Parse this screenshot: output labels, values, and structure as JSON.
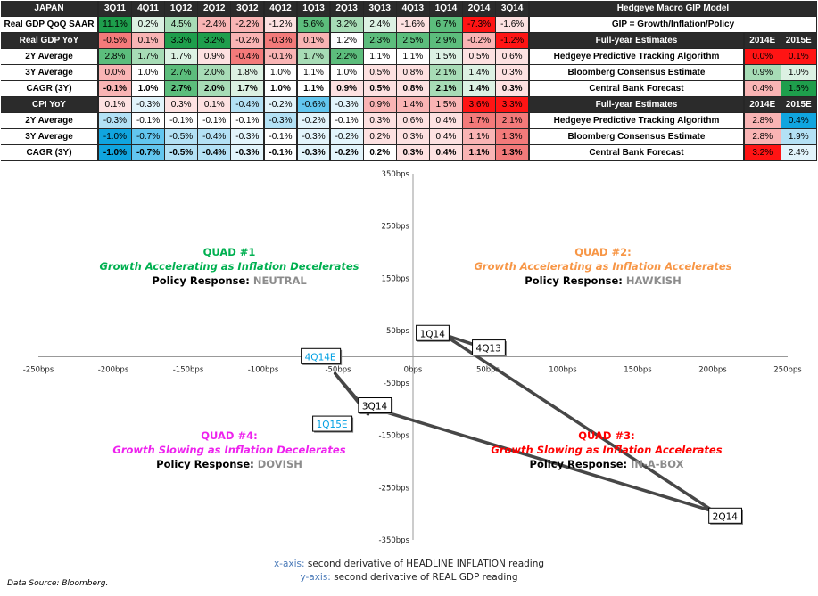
{
  "palette": {
    "G3": "#1e9e4c",
    "G2": "#5cbd7c",
    "G1": "#a7dcb6",
    "G0": "#dcf1e3",
    "W": "#ffffff",
    "R0": "#fde1e1",
    "R1": "#f9b4b4",
    "R2": "#f37a7a",
    "R3": "#ff1414",
    "B0": "#e2f4fb",
    "B1": "#b3e1f5",
    "B2": "#62c6ef",
    "B3": "#10a5df"
  },
  "table": {
    "corner": "JAPAN",
    "quarters": [
      "3Q11",
      "4Q11",
      "1Q12",
      "2Q12",
      "3Q12",
      "4Q12",
      "1Q13",
      "2Q13",
      "3Q13",
      "4Q13",
      "1Q14",
      "2Q14",
      "3Q14"
    ],
    "rows": [
      {
        "label": "Real GDP QoQ SAAR",
        "style": "light",
        "bold": false,
        "cells": [
          [
            "11.1%",
            "G3"
          ],
          [
            "0.2%",
            "G0"
          ],
          [
            "4.5%",
            "G1"
          ],
          [
            "-2.4%",
            "R1"
          ],
          [
            "-2.2%",
            "R1"
          ],
          [
            "-1.2%",
            "R0"
          ],
          [
            "5.6%",
            "G2"
          ],
          [
            "3.2%",
            "G1"
          ],
          [
            "2.4%",
            "G0"
          ],
          [
            "-1.6%",
            "R0"
          ],
          [
            "6.7%",
            "G2"
          ],
          [
            "-7.3%",
            "R3"
          ],
          [
            "-1.6%",
            "R0"
          ]
        ]
      },
      {
        "label": "Real GDP YoY",
        "style": "dark",
        "bold": false,
        "cells": [
          [
            "-0.5%",
            "R2"
          ],
          [
            "0.1%",
            "R1"
          ],
          [
            "3.3%",
            "G3"
          ],
          [
            "3.2%",
            "G3"
          ],
          [
            "-0.2%",
            "R1"
          ],
          [
            "-0.3%",
            "R2"
          ],
          [
            "0.1%",
            "R1"
          ],
          [
            "1.2%",
            "W"
          ],
          [
            "2.3%",
            "G2"
          ],
          [
            "2.5%",
            "G2"
          ],
          [
            "2.9%",
            "G2"
          ],
          [
            "-0.2%",
            "R1"
          ],
          [
            "-1.2%",
            "R3"
          ]
        ]
      },
      {
        "label": "2Y Average",
        "style": "light",
        "bold": false,
        "cells": [
          [
            "2.8%",
            "G2"
          ],
          [
            "1.7%",
            "G1"
          ],
          [
            "1.7%",
            "G0"
          ],
          [
            "0.9%",
            "R0"
          ],
          [
            "-0.4%",
            "R2"
          ],
          [
            "-0.1%",
            "R1"
          ],
          [
            "1.7%",
            "G1"
          ],
          [
            "2.2%",
            "G2"
          ],
          [
            "1.1%",
            "W"
          ],
          [
            "1.1%",
            "W"
          ],
          [
            "1.5%",
            "G0"
          ],
          [
            "0.5%",
            "R0"
          ],
          [
            "0.6%",
            "R0"
          ]
        ]
      },
      {
        "label": "3Y Average",
        "style": "light",
        "bold": false,
        "cells": [
          [
            "0.0%",
            "R1"
          ],
          [
            "1.0%",
            "W"
          ],
          [
            "2.7%",
            "G2"
          ],
          [
            "2.0%",
            "G1"
          ],
          [
            "1.8%",
            "G0"
          ],
          [
            "1.0%",
            "W"
          ],
          [
            "1.1%",
            "W"
          ],
          [
            "1.0%",
            "W"
          ],
          [
            "0.5%",
            "R0"
          ],
          [
            "0.8%",
            "R0"
          ],
          [
            "2.1%",
            "G1"
          ],
          [
            "1.4%",
            "G0"
          ],
          [
            "0.3%",
            "R0"
          ]
        ]
      },
      {
        "label": "CAGR (3Y)",
        "style": "light",
        "bold": true,
        "cells": [
          [
            "-0.1%",
            "R1"
          ],
          [
            "1.0%",
            "W"
          ],
          [
            "2.7%",
            "G2"
          ],
          [
            "2.0%",
            "G1"
          ],
          [
            "1.7%",
            "G0"
          ],
          [
            "1.0%",
            "W"
          ],
          [
            "1.1%",
            "W"
          ],
          [
            "0.9%",
            "R0"
          ],
          [
            "0.5%",
            "R0"
          ],
          [
            "0.8%",
            "R0"
          ],
          [
            "2.1%",
            "G1"
          ],
          [
            "1.4%",
            "G0"
          ],
          [
            "0.3%",
            "R0"
          ]
        ]
      },
      {
        "label": "CPI YoY",
        "style": "dark",
        "bold": false,
        "cells": [
          [
            "0.1%",
            "R0"
          ],
          [
            "-0.3%",
            "B0"
          ],
          [
            "0.3%",
            "R0"
          ],
          [
            "0.1%",
            "R0"
          ],
          [
            "-0.4%",
            "B1"
          ],
          [
            "-0.2%",
            "B0"
          ],
          [
            "-0.6%",
            "B2"
          ],
          [
            "-0.3%",
            "B0"
          ],
          [
            "0.9%",
            "R1"
          ],
          [
            "1.4%",
            "R1"
          ],
          [
            "1.5%",
            "R1"
          ],
          [
            "3.6%",
            "R3"
          ],
          [
            "3.3%",
            "R3"
          ]
        ]
      },
      {
        "label": "2Y Average",
        "style": "light",
        "bold": false,
        "cells": [
          [
            "-0.3%",
            "B1"
          ],
          [
            "-0.1%",
            "W"
          ],
          [
            "-0.1%",
            "W"
          ],
          [
            "-0.1%",
            "W"
          ],
          [
            "-0.1%",
            "W"
          ],
          [
            "-0.3%",
            "B1"
          ],
          [
            "-0.2%",
            "B0"
          ],
          [
            "-0.1%",
            "W"
          ],
          [
            "0.3%",
            "R0"
          ],
          [
            "0.6%",
            "R0"
          ],
          [
            "0.4%",
            "R0"
          ],
          [
            "1.7%",
            "R2"
          ],
          [
            "2.1%",
            "R2"
          ]
        ]
      },
      {
        "label": "3Y Average",
        "style": "light",
        "bold": false,
        "cells": [
          [
            "-1.0%",
            "B3"
          ],
          [
            "-0.7%",
            "B2"
          ],
          [
            "-0.5%",
            "B1"
          ],
          [
            "-0.4%",
            "B1"
          ],
          [
            "-0.3%",
            "B0"
          ],
          [
            "-0.1%",
            "W"
          ],
          [
            "-0.3%",
            "B0"
          ],
          [
            "-0.2%",
            "B0"
          ],
          [
            "0.2%",
            "R0"
          ],
          [
            "0.3%",
            "R0"
          ],
          [
            "0.4%",
            "R0"
          ],
          [
            "1.1%",
            "R1"
          ],
          [
            "1.3%",
            "R2"
          ]
        ]
      },
      {
        "label": "CAGR (3Y)",
        "style": "light",
        "bold": true,
        "cells": [
          [
            "-1.0%",
            "B3"
          ],
          [
            "-0.7%",
            "B2"
          ],
          [
            "-0.5%",
            "B1"
          ],
          [
            "-0.4%",
            "B1"
          ],
          [
            "-0.3%",
            "B0"
          ],
          [
            "-0.1%",
            "W"
          ],
          [
            "-0.3%",
            "B0"
          ],
          [
            "-0.2%",
            "B0"
          ],
          [
            "0.2%",
            "W"
          ],
          [
            "0.3%",
            "R0"
          ],
          [
            "0.4%",
            "R0"
          ],
          [
            "1.1%",
            "R1"
          ],
          [
            "1.3%",
            "R2"
          ]
        ]
      }
    ]
  },
  "gip": {
    "title": "Hedgeye Macro GIP Model",
    "subtitle": "GIP = Growth/Inflation/Policy",
    "sections": [
      {
        "header": "Full-year Estimates",
        "years": [
          "2014E",
          "2015E"
        ],
        "rows": [
          {
            "label": "Hedgeye Predictive Tracking Algorithm",
            "cells": [
              [
                "0.0%",
                "R3"
              ],
              [
                "0.1%",
                "R3"
              ]
            ]
          },
          {
            "label": "Bloomberg Consensus Estimate",
            "cells": [
              [
                "0.9%",
                "G1"
              ],
              [
                "1.0%",
                "G0"
              ]
            ]
          },
          {
            "label": "Central Bank Forecast",
            "cells": [
              [
                "0.4%",
                "R1"
              ],
              [
                "1.5%",
                "G3"
              ]
            ]
          }
        ]
      },
      {
        "header": "Full-year Estimates",
        "years": [
          "2014E",
          "2015E"
        ],
        "rows": [
          {
            "label": "Hedgeye Predictive Tracking Algorithm",
            "cells": [
              [
                "2.8%",
                "R1"
              ],
              [
                "0.4%",
                "B3"
              ]
            ]
          },
          {
            "label": "Bloomberg Consensus Estimate",
            "cells": [
              [
                "2.8%",
                "R1"
              ],
              [
                "1.9%",
                "B1"
              ]
            ]
          },
          {
            "label": "Central Bank Forecast",
            "cells": [
              [
                "3.2%",
                "R3"
              ],
              [
                "2.4%",
                "B0"
              ]
            ]
          }
        ]
      }
    ]
  },
  "chart_data": {
    "type": "scatter",
    "xlim": [
      -250,
      250
    ],
    "ylim": [
      -350,
      350
    ],
    "x_ticks": [
      "-250bps",
      "-200bps",
      "-150bps",
      "-100bps",
      "-50bps",
      "0bps",
      "50bps",
      "100bps",
      "150bps",
      "200bps",
      "250bps"
    ],
    "x_tick_values": [
      -250,
      -200,
      -150,
      -100,
      -50,
      0,
      50,
      100,
      150,
      200,
      250
    ],
    "y_ticks": [
      "350bps",
      "250bps",
      "150bps",
      "50bps",
      "-50bps",
      "-150bps",
      "-250bps",
      "-350bps"
    ],
    "y_tick_values": [
      350,
      250,
      150,
      50,
      -50,
      -150,
      -250,
      -350
    ],
    "line_color": "#333333",
    "points": [
      {
        "label": "4Q13",
        "x": 42,
        "y": 22,
        "color": "#000000"
      },
      {
        "label": "1Q14",
        "x": 20,
        "y": 43,
        "color": "#000000"
      },
      {
        "label": "2Q14",
        "x": 201,
        "y": -296,
        "color": "#000000"
      },
      {
        "label": "3Q14",
        "x": -34,
        "y": -92,
        "color": "#000000"
      },
      {
        "label": "4Q14E",
        "x": -52,
        "y": -32,
        "color": "#00a0e3"
      },
      {
        "label": "1Q15E",
        "x": -30,
        "y": -110,
        "color": "#00a0e3"
      }
    ],
    "quadrants": [
      {
        "id": "q1",
        "title": "QUAD #1",
        "subtitle": "Growth Accelerating as Inflation Decelerates",
        "policy_label": "Policy Response:",
        "policy": "NEUTRAL",
        "color": "#00b050"
      },
      {
        "id": "q2",
        "title": "QUAD #2:",
        "subtitle": "Growth Accelerating as Inflation Accelerates",
        "policy_label": "Policy Response:",
        "policy": "HAWKISH",
        "color": "#f79646"
      },
      {
        "id": "q4",
        "title": "QUAD #4:",
        "subtitle": "Growth Slowing as Inflation Decelerates",
        "policy_label": "Policy Response:",
        "policy": "DOVISH",
        "color": "#ee22ee"
      },
      {
        "id": "q3",
        "title": "QUAD #3:",
        "subtitle": "Growth Slowing as Inflation Accelerates",
        "policy_label": "Policy Response:",
        "policy": "IN-A-BOX",
        "color": "#ff0000"
      }
    ],
    "xlabel_key": "x-axis:",
    "xlabel": "second derivative of HEADLINE INFLATION reading",
    "ylabel_key": "y-axis:",
    "ylabel": "second derivative of REAL GDP reading"
  },
  "source": "Data Source: Bloomberg."
}
